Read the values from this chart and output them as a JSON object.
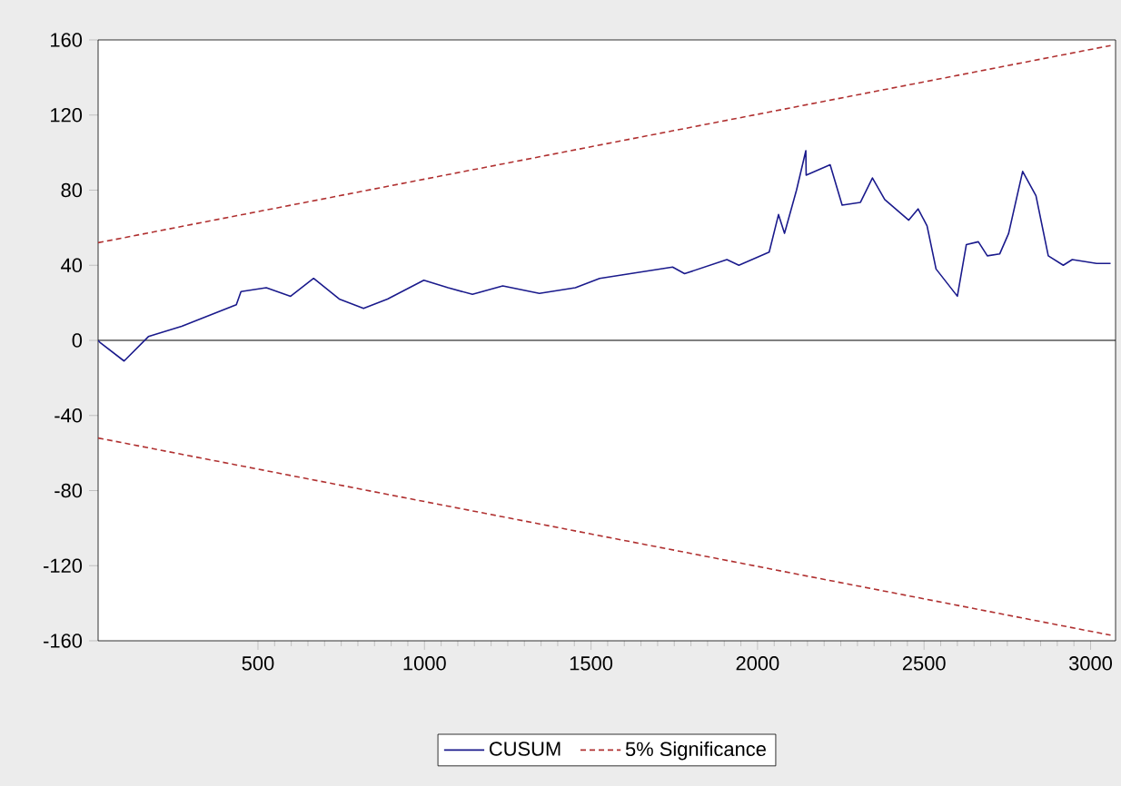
{
  "chart_data": {
    "type": "line",
    "xlim": [
      20,
      3075
    ],
    "ylim": [
      -160,
      160
    ],
    "xticks": [
      500,
      1000,
      1500,
      2000,
      2500,
      3000
    ],
    "yticks": [
      -160,
      -120,
      -80,
      -40,
      0,
      40,
      80,
      120,
      160
    ],
    "legend": "bottom",
    "ref_lines": [
      {
        "axis": "y",
        "value": 0,
        "color": "#000000"
      }
    ],
    "series": [
      {
        "name": "CUSUM",
        "color": "#1a1a8c",
        "line_style": "solid",
        "x": [
          20,
          25,
          98,
          171,
          271,
          435,
          449,
          525,
          598,
          667,
          744,
          817,
          889,
          998,
          1071,
          1144,
          1235,
          1345,
          1453,
          1526,
          1745,
          1781,
          1908,
          1944,
          2035,
          2063,
          2081,
          2117,
          2145,
          2146,
          2218,
          2254,
          2309,
          2345,
          2382,
          2454,
          2482,
          2509,
          2536,
          2600,
          2627,
          2663,
          2690,
          2727,
          2754,
          2796,
          2836,
          2873,
          2918,
          2945,
          3018,
          3060
        ],
        "values": [
          0,
          -1,
          -11,
          2,
          7.5,
          19,
          26,
          28,
          23.5,
          33,
          22,
          17,
          22,
          32,
          28,
          24.5,
          29,
          25,
          28,
          33,
          39,
          35.5,
          43,
          40,
          47,
          67,
          57,
          80,
          101,
          88,
          93.5,
          72,
          73.5,
          86.5,
          75,
          64,
          70,
          61,
          38,
          23.5,
          51,
          52.5,
          45,
          46,
          57,
          90,
          77,
          45,
          40,
          43,
          41,
          41
        ]
      },
      {
        "name": "5% Significance",
        "color": "#b03030",
        "line_style": "dashed",
        "x": [
          20,
          3060
        ],
        "values": [
          52,
          157
        ]
      },
      {
        "color": "#b03030",
        "line_style": "dashed",
        "x": [
          20,
          3060
        ],
        "values": [
          -52,
          -157
        ]
      }
    ]
  }
}
